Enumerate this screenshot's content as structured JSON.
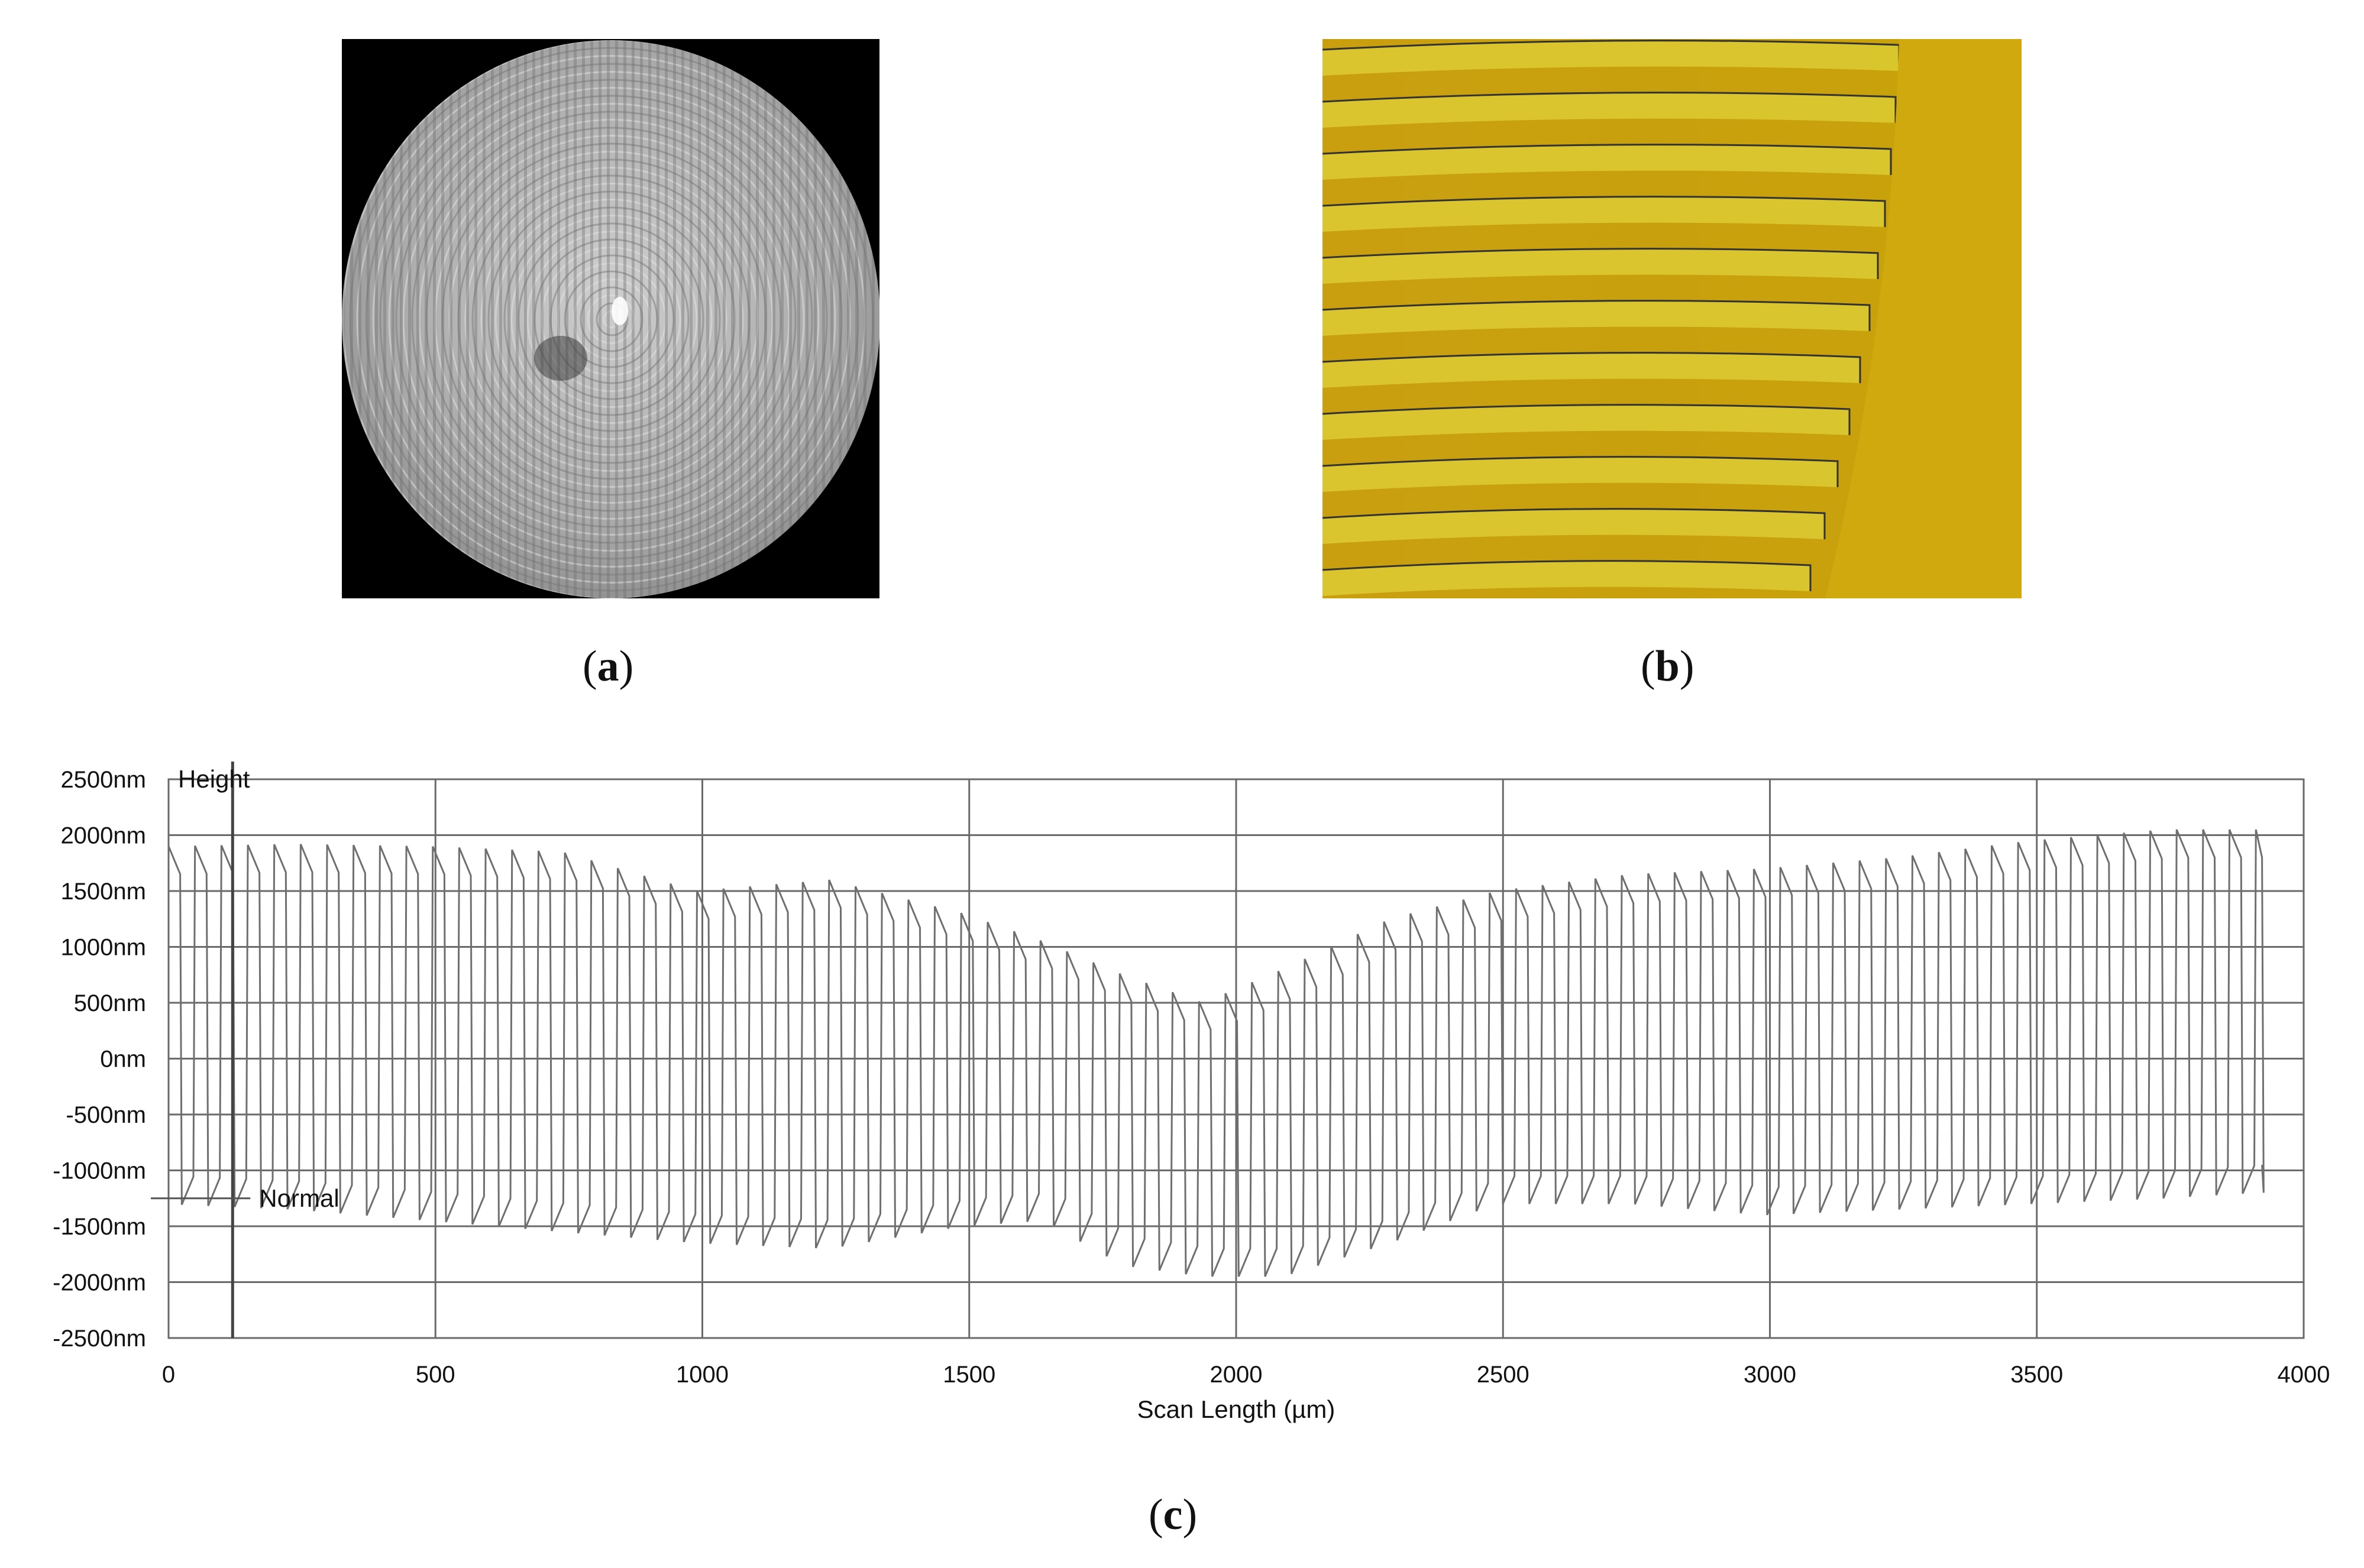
{
  "panels": {
    "a": {
      "caption_letter": "a"
    },
    "b": {
      "caption_letter": "b"
    },
    "c": {
      "caption_letter": "c"
    }
  },
  "chart_data": {
    "type": "line",
    "xlabel": "Scan Length (µm)",
    "ylabel": "",
    "xlim": [
      0,
      4000
    ],
    "ylim": [
      -2500,
      2500
    ],
    "x_ticks": [
      0,
      500,
      1000,
      1500,
      2000,
      2500,
      3000,
      3500,
      4000
    ],
    "x_tick_labels": [
      "0",
      "500",
      "1000",
      "1500",
      "2000",
      "2500",
      "3000",
      "3500",
      "4000"
    ],
    "y_ticks": [
      2500,
      2000,
      1500,
      1000,
      500,
      0,
      -500,
      -1000,
      -1500,
      -2000,
      -2500
    ],
    "y_tick_labels": [
      "2500nm",
      "2000nm",
      "1500nm",
      "1000nm",
      "500nm",
      "0nm",
      "-500nm",
      "-1000nm",
      "-1500nm",
      "-2000nm",
      "-2500nm"
    ],
    "grid": true,
    "annotations": {
      "series_label": "Height",
      "reference_label": "Normal",
      "cursor_x": 120
    },
    "series": [
      {
        "name": "Height",
        "x_end": 3925,
        "period_um": 49.5,
        "envelope_x": [
          0,
          250,
          500,
          750,
          1000,
          1250,
          1500,
          1650,
          1800,
          1950,
          2100,
          2300,
          2500,
          2750,
          3000,
          3250,
          3500,
          3750,
          3925
        ],
        "envelope_top": [
          1900,
          1920,
          1900,
          1850,
          1500,
          1600,
          1300,
          1050,
          750,
          500,
          800,
          1250,
          1500,
          1650,
          1700,
          1800,
          1950,
          2050,
          2050
        ],
        "envelope_bottom": [
          -1300,
          -1350,
          -1450,
          -1550,
          -1650,
          -1700,
          -1500,
          -1450,
          -1850,
          -1950,
          -1950,
          -1650,
          -1300,
          -1300,
          -1400,
          -1350,
          -1300,
          -1250,
          -1200
        ]
      }
    ]
  }
}
